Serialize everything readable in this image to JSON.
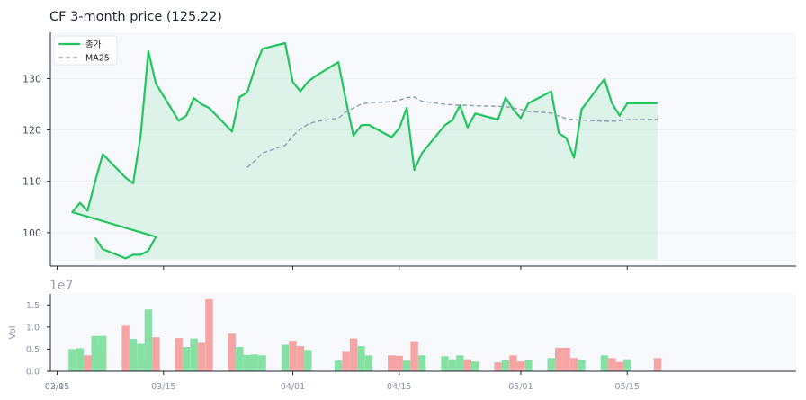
{
  "chart_data": [
    {
      "type": "line",
      "title": "CF  3-month price (125.22)",
      "ylim": [
        93.5,
        139
      ],
      "yticks": [
        100,
        110,
        120,
        130
      ],
      "legend_position": "top-left",
      "grid": false,
      "series": [
        {
          "name": "종가",
          "color": "#22c55e",
          "fill": true,
          "x": [
            "02-20",
            "02-21",
            "02-24",
            "02-25",
            "02-26",
            "02-27",
            "02-28",
            "03-03",
            "03-04",
            "03-05",
            "03-06",
            "03-07",
            "03-10",
            "03-11",
            "03-12",
            "03-13",
            "03-14",
            "03-17",
            "03-18",
            "03-19",
            "03-20",
            "03-21",
            "03-24",
            "03-25",
            "03-26",
            "03-27",
            "03-28",
            "03-31",
            "04-01",
            "04-02",
            "04-03",
            "04-04",
            "04-07",
            "04-08",
            "04-09",
            "04-10",
            "04-11",
            "04-14",
            "04-15",
            "04-16",
            "04-17",
            "04-18",
            "04-21",
            "04-22",
            "04-23",
            "04-24",
            "04-25",
            "04-28",
            "04-29",
            "04-30",
            "05-01",
            "05-02",
            "05-05",
            "05-06",
            "05-07",
            "05-08",
            "05-09",
            "05-12",
            "05-13",
            "05-14",
            "05-15",
            "05-16",
            "05-19"
          ],
          "values": [
            99.0,
            96.8,
            95.0,
            95.7,
            95.7,
            96.5,
            99.2,
            104.0,
            105.8,
            104.3,
            110.0,
            115.3,
            110.7,
            109.6,
            119.0,
            135.3,
            129.0,
            121.8,
            122.8,
            126.2,
            125.0,
            124.3,
            119.7,
            126.4,
            127.3,
            132.0,
            135.8,
            136.9,
            129.4,
            127.5,
            129.4,
            130.5,
            133.2,
            125.7,
            118.9,
            120.9,
            121.0,
            118.6,
            120.3,
            124.3,
            112.2,
            115.5,
            120.9,
            121.9,
            124.8,
            120.5,
            123.2,
            122.0,
            126.3,
            124.0,
            122.3,
            125.2,
            127.5,
            119.4,
            118.4,
            114.6,
            124.0,
            129.9,
            125.2,
            122.8,
            125.2,
            125.2,
            125.2
          ]
        },
        {
          "name": "MA25",
          "color": "#94a3b8",
          "dashed": true,
          "x": [
            "03-26",
            "03-27",
            "03-28",
            "03-31",
            "04-01",
            "04-02",
            "04-03",
            "04-04",
            "04-07",
            "04-08",
            "04-09",
            "04-10",
            "04-11",
            "04-14",
            "04-15",
            "04-16",
            "04-17",
            "04-18",
            "04-21",
            "04-22",
            "04-23",
            "04-24",
            "04-25",
            "04-28",
            "04-29",
            "04-30",
            "05-01",
            "05-02",
            "05-05",
            "05-06",
            "05-07",
            "05-08",
            "05-09",
            "05-12",
            "05-13",
            "05-14",
            "05-15",
            "05-16",
            "05-19"
          ],
          "values": [
            112.7,
            114.0,
            115.5,
            117.0,
            118.8,
            120.2,
            121.1,
            121.6,
            122.3,
            123.5,
            124.3,
            125.0,
            125.3,
            125.5,
            125.8,
            126.3,
            126.4,
            125.6,
            125.0,
            124.9,
            124.8,
            124.8,
            124.7,
            124.6,
            124.5,
            124.3,
            124.0,
            123.6,
            123.3,
            122.7,
            122.2,
            122.0,
            121.9,
            121.7,
            121.7,
            121.8,
            122.0,
            122.0,
            122.1
          ]
        }
      ]
    },
    {
      "type": "bar",
      "ylabel": "Vol",
      "offset_label": "1e7",
      "ylim": [
        0,
        1.75
      ],
      "yticks": [
        "0.0",
        "0.5",
        "1.0",
        "1.5"
      ],
      "xticks": [
        "02/15",
        "03/01",
        "03/15",
        "04/01",
        "04/15",
        "05/01",
        "05/15"
      ],
      "up_color": "#86e0a4",
      "down_color": "#f5a3a3",
      "x": [
        "02-20",
        "02-21",
        "02-24",
        "02-25",
        "02-26",
        "02-27",
        "02-28",
        "03-03",
        "03-04",
        "03-05",
        "03-06",
        "03-07",
        "03-10",
        "03-11",
        "03-12",
        "03-13",
        "03-14",
        "03-17",
        "03-18",
        "03-19",
        "03-20",
        "03-21",
        "03-24",
        "03-25",
        "03-26",
        "03-27",
        "03-28",
        "03-31",
        "04-01",
        "04-02",
        "04-03",
        "04-04",
        "04-07",
        "04-08",
        "04-09",
        "04-10",
        "04-11",
        "04-14",
        "04-15",
        "04-16",
        "04-17",
        "04-18",
        "04-21",
        "04-22",
        "04-23",
        "04-24",
        "04-25",
        "04-28",
        "04-29",
        "04-30",
        "05-01",
        "05-02",
        "05-05",
        "05-06",
        "05-07",
        "05-08",
        "05-09",
        "05-12",
        "05-13",
        "05-14",
        "05-15",
        "05-16",
        "05-19"
      ],
      "values": [
        0.6,
        0.36,
        0.22,
        0.22,
        0.25,
        0.26,
        0.26,
        0.5,
        0.52,
        0.36,
        0.8,
        0.8,
        1.03,
        0.73,
        0.62,
        1.4,
        0.77,
        0.75,
        0.55,
        0.74,
        0.64,
        1.63,
        0.85,
        0.55,
        0.37,
        0.38,
        0.36,
        0.6,
        0.69,
        0.57,
        0.48,
        0.0,
        0.24,
        0.44,
        0.74,
        0.57,
        0.36,
        0.36,
        0.35,
        0.24,
        0.68,
        0.36,
        0.34,
        0.27,
        0.36,
        0.27,
        0.22,
        0.2,
        0.25,
        0.36,
        0.22,
        0.26,
        0.3,
        0.53,
        0.53,
        0.3,
        0.26,
        0.36,
        0.3,
        0.21,
        0.27,
        0.0,
        0.3
      ],
      "up": [
        true,
        false,
        false,
        true,
        true,
        true,
        true,
        true,
        true,
        false,
        true,
        true,
        false,
        true,
        true,
        true,
        false,
        false,
        true,
        true,
        false,
        false,
        false,
        true,
        true,
        true,
        true,
        true,
        false,
        false,
        true,
        true,
        true,
        false,
        false,
        true,
        true,
        false,
        false,
        true,
        false,
        true,
        true,
        true,
        true,
        false,
        true,
        false,
        true,
        false,
        false,
        true,
        true,
        false,
        false,
        false,
        true,
        true,
        false,
        false,
        true,
        true,
        false
      ]
    }
  ]
}
